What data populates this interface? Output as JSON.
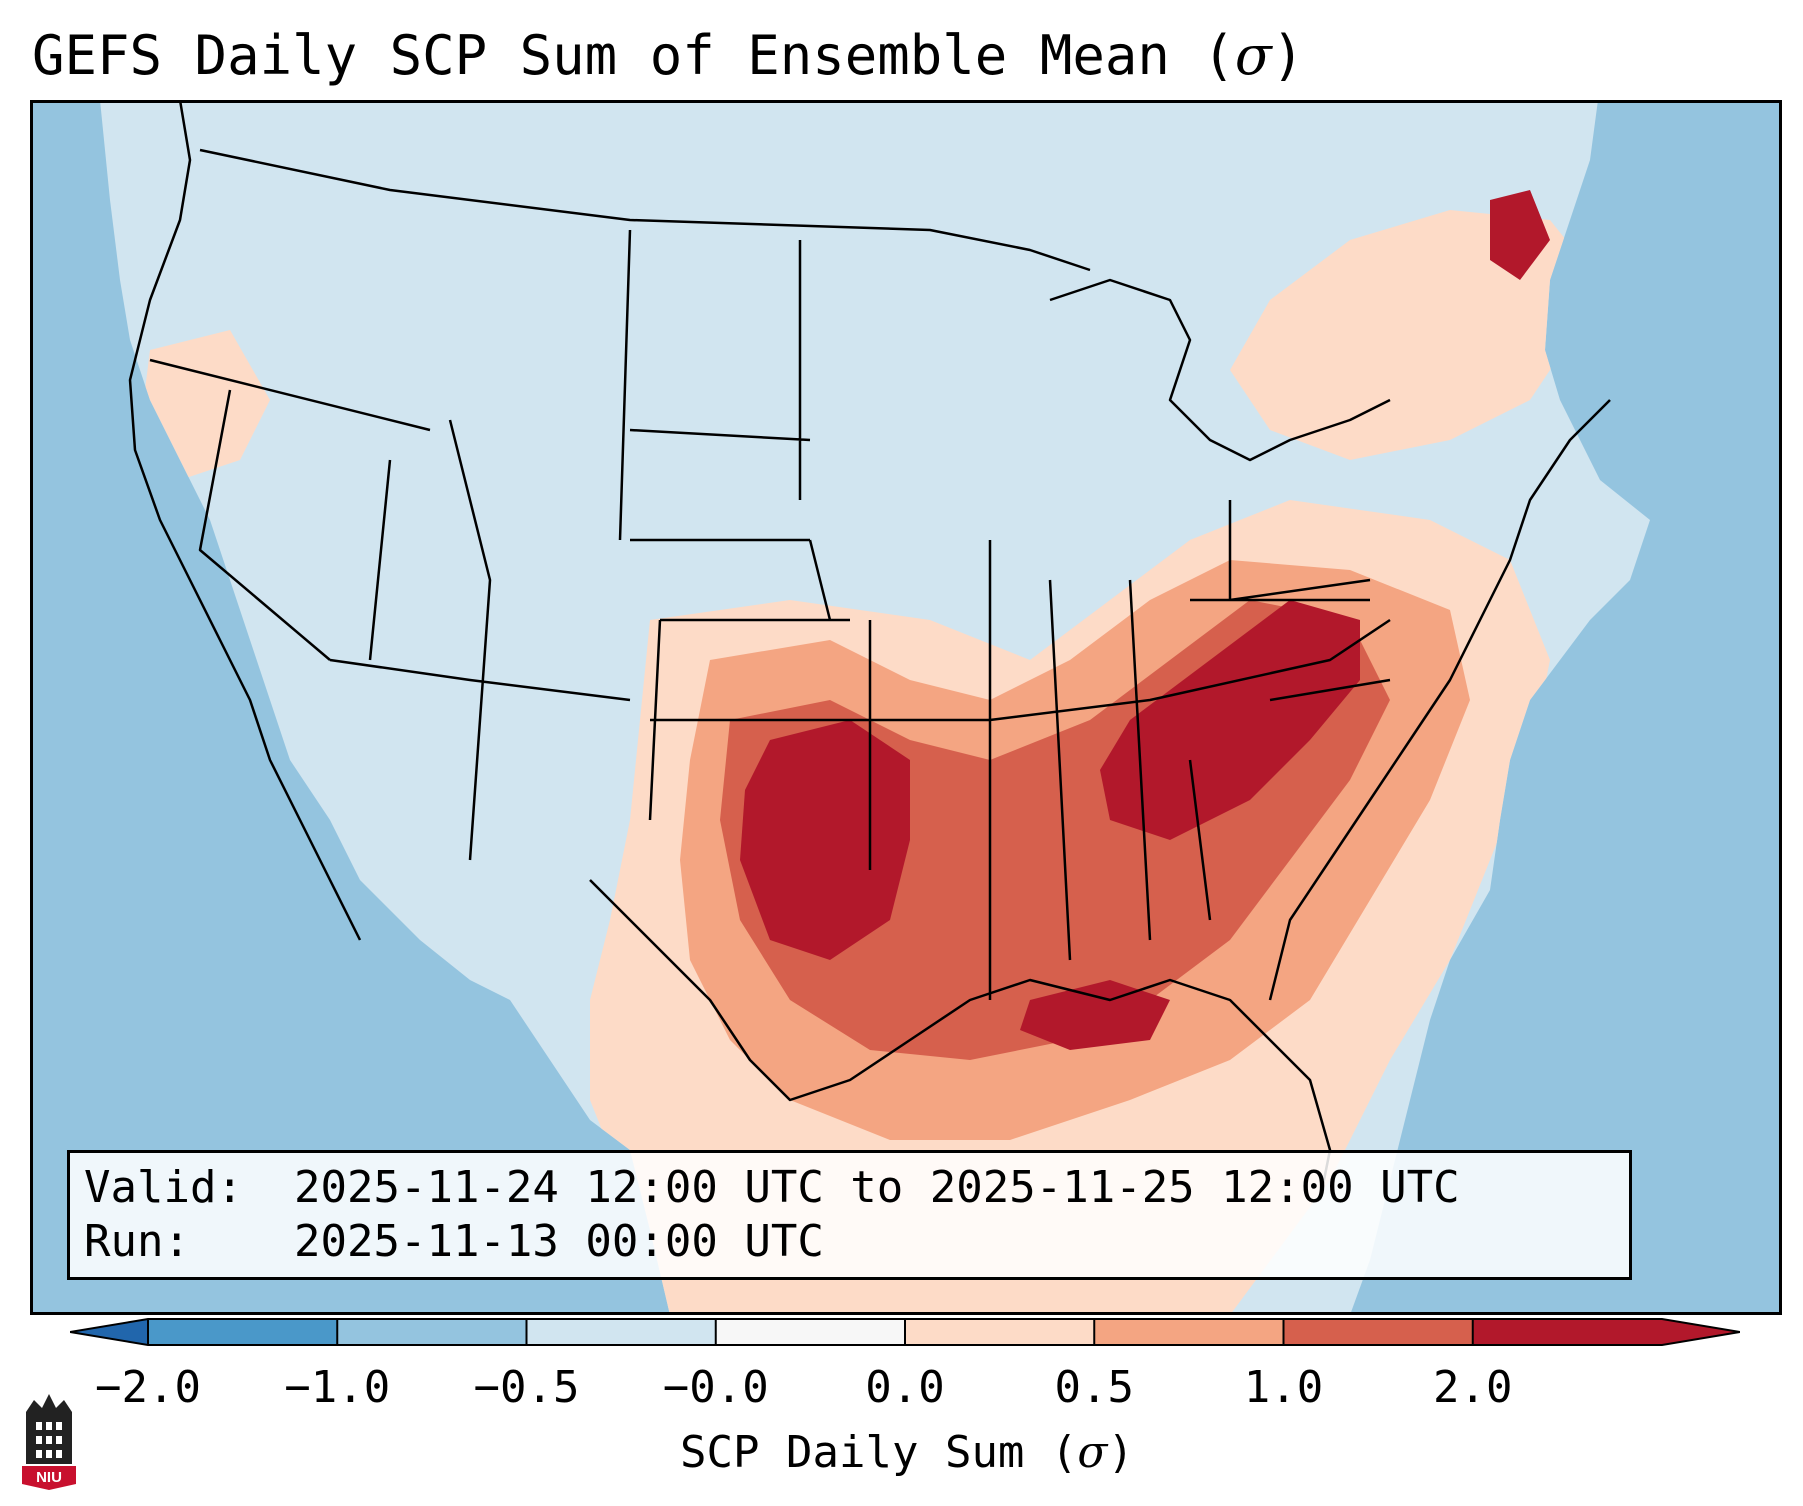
{
  "title": {
    "prefix": "GEFS Daily SCP Sum of Ensemble Mean (",
    "symbol": "σ",
    "suffix": ")"
  },
  "info": {
    "valid_label": "Valid:",
    "valid_value": "2025-11-24 12:00 UTC to 2025-11-25 12:00 UTC",
    "run_label": "Run:",
    "run_value": "2025-11-13 00:00 UTC"
  },
  "colorbar": {
    "label_prefix": "SCP Daily Sum (",
    "label_symbol": "σ",
    "label_suffix": ")",
    "ticks": [
      "−2.0",
      "−1.0",
      "−0.5",
      "−0.0",
      "0.0",
      "0.5",
      "1.0",
      "2.0"
    ],
    "colors": [
      "#4a98c9",
      "#94c4df",
      "#d1e5f0",
      "#f7f7f7",
      "#fddbc7",
      "#f4a582",
      "#d6604d",
      "#b2182b"
    ],
    "extend_low_color": "#2166ac",
    "extend_high_color": "#b2182b"
  },
  "map": {
    "ocean_color": "#94c4df",
    "land_base_color": "#d1e5f0",
    "outline_color": "#000000"
  },
  "logo": {
    "text": "NIU",
    "primary_color": "#c8102e",
    "secondary_color": "#222222"
  }
}
